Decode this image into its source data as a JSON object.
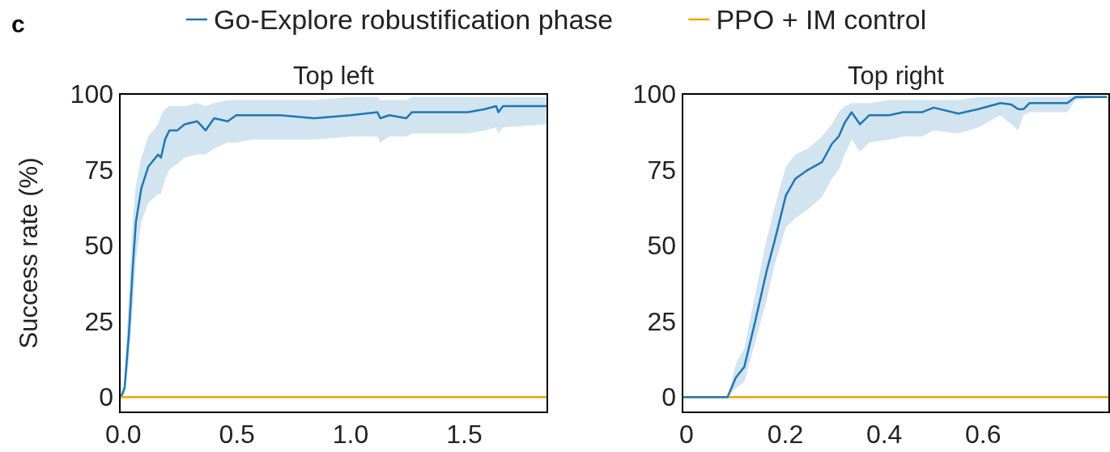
{
  "chart_data": [
    {
      "type": "line",
      "title": "Top left",
      "ylabel": "Success rate (%)",
      "annotations": [
        "c"
      ],
      "legend": "top",
      "xlim": [
        -0.015,
        1.865
      ],
      "ylim": [
        -5,
        100
      ],
      "xticks": [
        {
          "value": 0,
          "label": "0.0"
        },
        {
          "value": 0.5,
          "label": "0.5"
        },
        {
          "value": 1,
          "label": "1.0"
        },
        {
          "value": 1.5,
          "label": "1.5"
        }
      ],
      "yticks": [
        0,
        25,
        50,
        75,
        100
      ],
      "grid": false,
      "series": [
        {
          "name": "Go-Explore robustification phase",
          "color": "#1f77b4",
          "x": [
            -0.01,
            0.006,
            0.025,
            0.043,
            0.056,
            0.08,
            0.11,
            0.153,
            0.166,
            0.184,
            0.203,
            0.238,
            0.27,
            0.325,
            0.362,
            0.4,
            0.46,
            0.497,
            0.57,
            0.69,
            0.84,
            1.0,
            1.118,
            1.13,
            1.17,
            1.245,
            1.27,
            1.516,
            1.59,
            1.64,
            1.65,
            1.67,
            1.86
          ],
          "values": [
            0,
            3,
            21,
            44,
            58,
            69,
            76,
            80,
            79,
            85,
            88,
            88,
            90,
            91,
            88,
            92,
            91,
            93,
            93,
            93,
            92,
            93,
            94,
            92,
            93,
            92,
            94,
            94,
            95,
            96,
            94,
            96,
            96
          ],
          "lower": [
            0,
            1,
            12,
            30,
            45,
            58,
            64,
            67,
            67,
            72,
            75,
            77,
            79,
            80,
            80,
            82,
            84,
            84,
            85,
            85,
            85,
            86,
            86,
            84,
            86,
            86,
            87,
            87,
            88,
            89,
            87,
            89,
            90
          ],
          "upper": [
            0,
            5,
            35,
            60,
            70,
            79,
            86,
            90,
            93,
            95,
            96,
            96,
            96,
            97,
            96,
            97,
            98,
            98,
            98,
            98,
            98,
            99,
            99,
            98,
            98,
            98,
            99,
            99,
            99,
            99,
            99,
            99,
            99
          ]
        },
        {
          "name": "PPO + IM control",
          "color": "#f0a30a",
          "x": [
            -0.015,
            1.865
          ],
          "values": [
            0,
            0
          ]
        }
      ]
    },
    {
      "type": "line",
      "title": "Top right",
      "xlim": [
        -0.008,
        0.855
      ],
      "ylim": [
        -5,
        100
      ],
      "xticks": [
        0,
        0.2,
        0.4,
        0.6
      ],
      "yticks": [
        0,
        25,
        50,
        75,
        100
      ],
      "grid": false,
      "series": [
        {
          "color": "#f0a30a",
          "x": [
            -0.008,
            0.855
          ],
          "values": [
            0,
            0
          ]
        },
        {
          "color": "#1f77b4",
          "x": [
            -0.007,
            0.083,
            0.1,
            0.117,
            0.139,
            0.162,
            0.179,
            0.201,
            0.22,
            0.246,
            0.274,
            0.294,
            0.308,
            0.32,
            0.334,
            0.351,
            0.37,
            0.41,
            0.438,
            0.477,
            0.5,
            0.55,
            0.59,
            0.635,
            0.657,
            0.671,
            0.682,
            0.694,
            0.77,
            0.787,
            0.849
          ],
          "values": [
            0,
            0,
            6.5,
            10,
            25,
            41.5,
            52,
            66.5,
            72,
            75,
            77.5,
            83.5,
            86,
            90.5,
            94,
            90,
            93,
            93,
            94,
            94,
            95.5,
            93.5,
            95,
            97,
            96.5,
            95,
            95,
            97,
            97,
            99,
            99
          ],
          "lower": [
            0,
            0,
            3,
            5,
            18,
            32,
            44,
            56,
            59,
            62,
            66,
            72,
            75,
            80,
            85,
            81,
            84,
            85,
            86,
            86,
            88,
            87,
            89,
            93,
            90,
            88,
            93,
            94,
            94,
            98,
            99
          ],
          "upper": [
            0,
            0,
            11,
            16,
            34,
            52,
            63,
            76,
            80,
            82,
            86,
            90,
            94,
            96,
            97,
            97,
            97,
            98,
            98,
            98,
            98,
            98,
            99,
            99,
            99,
            99,
            99,
            99,
            99,
            99.5,
            99.5
          ]
        }
      ]
    }
  ]
}
